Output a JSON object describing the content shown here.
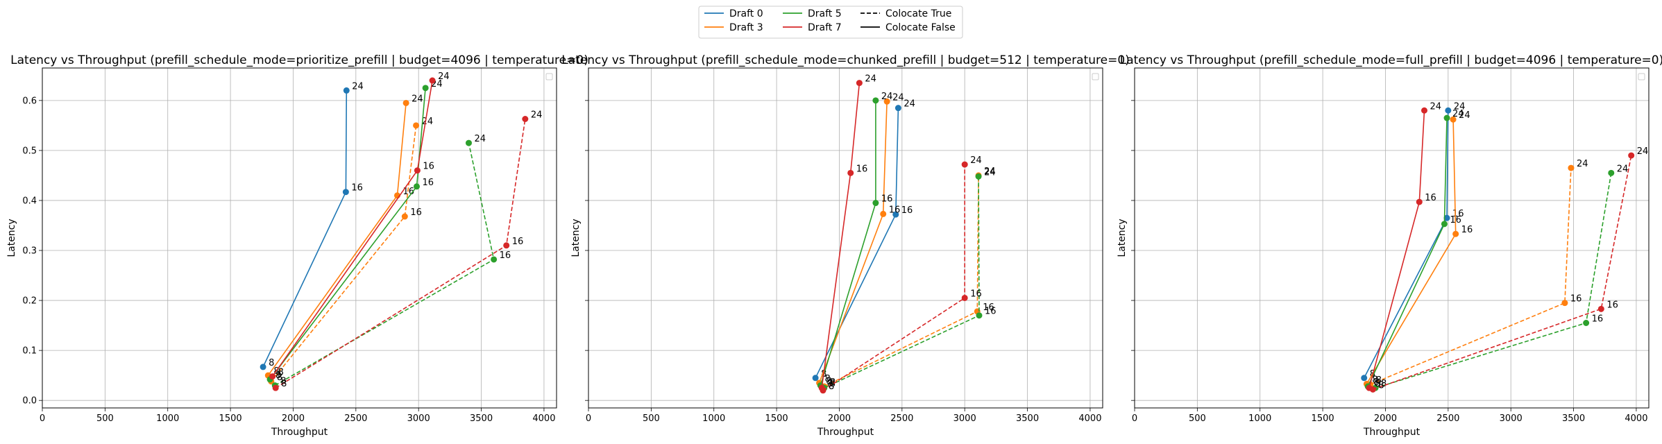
{
  "legend": {
    "items": [
      {
        "label": "Draft 0",
        "color": "#1f77b4",
        "style": "solid"
      },
      {
        "label": "Draft 3",
        "color": "#ff7f0e",
        "style": "solid"
      },
      {
        "label": "Draft 5",
        "color": "#2ca02c",
        "style": "solid"
      },
      {
        "label": "Draft 7",
        "color": "#d62728",
        "style": "solid"
      },
      {
        "label": "Colocate True",
        "color": "#000000",
        "style": "dashed"
      },
      {
        "label": "Colocate False",
        "color": "#000000",
        "style": "solid"
      }
    ]
  },
  "chart_data": [
    {
      "type": "line",
      "title": "Latency vs Throughput (prefill_schedule_mode=prioritize_prefill | budget=4096 | temperature=0)",
      "xlabel": "Throughput",
      "ylabel": "Latency",
      "xlim": [
        0,
        4100
      ],
      "ylim": [
        -0.015,
        0.665
      ],
      "xticks": [
        0,
        500,
        1000,
        1500,
        2000,
        2500,
        3000,
        3500,
        4000
      ],
      "yticks": [
        0.0,
        0.1,
        0.2,
        0.3,
        0.4,
        0.5,
        0.6
      ],
      "grid": true,
      "point_labels": [
        "8",
        "16",
        "24"
      ],
      "series": [
        {
          "name": "Draft 0",
          "colocate": false,
          "color": "#1f77b4",
          "x": [
            1760,
            2420,
            2425
          ],
          "y": [
            0.067,
            0.417,
            0.62
          ]
        },
        {
          "name": "Draft 3",
          "colocate": false,
          "color": "#ff7f0e",
          "x": [
            1800,
            2830,
            2900
          ],
          "y": [
            0.05,
            0.41,
            0.595
          ]
        },
        {
          "name": "Draft 3",
          "colocate": true,
          "color": "#ff7f0e",
          "x": [
            1825,
            2890,
            2980
          ],
          "y": [
            0.038,
            0.368,
            0.55
          ]
        },
        {
          "name": "Draft 5",
          "colocate": false,
          "color": "#2ca02c",
          "x": [
            1815,
            2985,
            3055
          ],
          "y": [
            0.042,
            0.428,
            0.625
          ]
        },
        {
          "name": "Draft 5",
          "colocate": true,
          "color": "#2ca02c",
          "x": [
            1855,
            3600,
            3400
          ],
          "y": [
            0.03,
            0.282,
            0.515
          ]
        },
        {
          "name": "Draft 7",
          "colocate": false,
          "color": "#d62728",
          "x": [
            1835,
            2990,
            3110
          ],
          "y": [
            0.048,
            0.46,
            0.64
          ]
        },
        {
          "name": "Draft 7",
          "colocate": true,
          "color": "#d62728",
          "x": [
            1860,
            3700,
            3850
          ],
          "y": [
            0.025,
            0.31,
            0.563
          ]
        }
      ]
    },
    {
      "type": "line",
      "title": "Latency vs Throughput (prefill_schedule_mode=chunked_prefill | budget=512 | temperature=0)",
      "xlabel": "Throughput",
      "ylabel": "Latency",
      "xlim": [
        0,
        4100
      ],
      "ylim": [
        -0.015,
        0.665
      ],
      "xticks": [
        0,
        500,
        1000,
        1500,
        2000,
        2500,
        3000,
        3500,
        4000
      ],
      "yticks": [
        0.0,
        0.1,
        0.2,
        0.3,
        0.4,
        0.5,
        0.6
      ],
      "grid": true,
      "point_labels": [
        "8",
        "16",
        "24"
      ],
      "series": [
        {
          "name": "Draft 0",
          "colocate": false,
          "color": "#1f77b4",
          "x": [
            1810,
            2450,
            2470
          ],
          "y": [
            0.045,
            0.372,
            0.585
          ]
        },
        {
          "name": "Draft 3",
          "colocate": false,
          "color": "#ff7f0e",
          "x": [
            1840,
            2350,
            2380
          ],
          "y": [
            0.035,
            0.373,
            0.598
          ]
        },
        {
          "name": "Draft 3",
          "colocate": true,
          "color": "#ff7f0e",
          "x": [
            1880,
            3100,
            3110
          ],
          "y": [
            0.028,
            0.178,
            0.45
          ]
        },
        {
          "name": "Draft 5",
          "colocate": false,
          "color": "#2ca02c",
          "x": [
            1850,
            2290,
            2290
          ],
          "y": [
            0.03,
            0.395,
            0.6
          ]
        },
        {
          "name": "Draft 5",
          "colocate": true,
          "color": "#2ca02c",
          "x": [
            1880,
            3115,
            3110
          ],
          "y": [
            0.025,
            0.17,
            0.448
          ]
        },
        {
          "name": "Draft 7",
          "colocate": false,
          "color": "#d62728",
          "x": [
            1860,
            2090,
            2160
          ],
          "y": [
            0.025,
            0.455,
            0.635
          ]
        },
        {
          "name": "Draft 7",
          "colocate": true,
          "color": "#d62728",
          "x": [
            1870,
            3000,
            3000
          ],
          "y": [
            0.02,
            0.205,
            0.472
          ]
        }
      ]
    },
    {
      "type": "line",
      "title": "Latency vs Throughput (prefill_schedule_mode=full_prefill | budget=4096 | temperature=0)",
      "xlabel": "Throughput",
      "ylabel": "Latency",
      "xlim": [
        0,
        4100
      ],
      "ylim": [
        -0.015,
        0.665
      ],
      "xticks": [
        0,
        500,
        1000,
        1500,
        2000,
        2500,
        3000,
        3500,
        4000
      ],
      "yticks": [
        0.0,
        0.1,
        0.2,
        0.3,
        0.4,
        0.5,
        0.6
      ],
      "grid": true,
      "point_labels": [
        "8",
        "16",
        "24"
      ],
      "series": [
        {
          "name": "Draft 0",
          "colocate": false,
          "color": "#1f77b4",
          "x": [
            1830,
            2490,
            2500
          ],
          "y": [
            0.045,
            0.365,
            0.58
          ]
        },
        {
          "name": "Draft 3",
          "colocate": false,
          "color": "#ff7f0e",
          "x": [
            1850,
            2560,
            2540
          ],
          "y": [
            0.033,
            0.333,
            0.562
          ]
        },
        {
          "name": "Draft 3",
          "colocate": true,
          "color": "#ff7f0e",
          "x": [
            1880,
            3430,
            3480
          ],
          "y": [
            0.032,
            0.195,
            0.465
          ]
        },
        {
          "name": "Draft 5",
          "colocate": false,
          "color": "#2ca02c",
          "x": [
            1860,
            2470,
            2490
          ],
          "y": [
            0.028,
            0.353,
            0.565
          ]
        },
        {
          "name": "Draft 5",
          "colocate": true,
          "color": "#2ca02c",
          "x": [
            1920,
            3600,
            3800
          ],
          "y": [
            0.025,
            0.155,
            0.455
          ]
        },
        {
          "name": "Draft 7",
          "colocate": false,
          "color": "#d62728",
          "x": [
            1870,
            2270,
            2310
          ],
          "y": [
            0.025,
            0.397,
            0.58
          ]
        },
        {
          "name": "Draft 7",
          "colocate": true,
          "color": "#d62728",
          "x": [
            1900,
            3720,
            3960
          ],
          "y": [
            0.022,
            0.183,
            0.49
          ]
        }
      ]
    }
  ]
}
